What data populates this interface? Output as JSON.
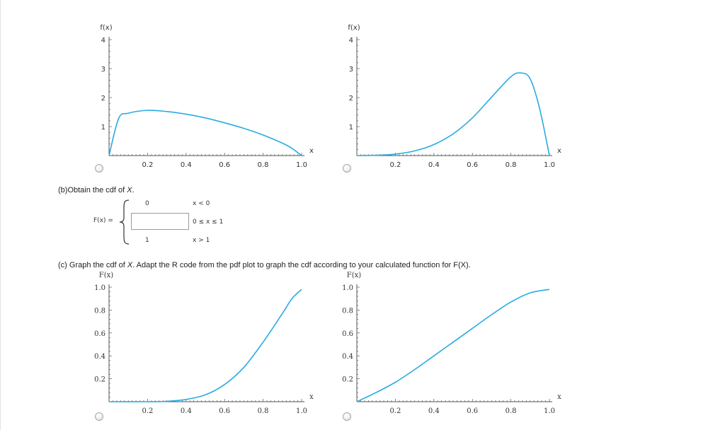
{
  "pdf_question": {
    "plots": [
      {
        "ylabel": "f(x)",
        "xlabel": "x",
        "yticks": [
          "1",
          "2",
          "3",
          "4"
        ],
        "xticks": [
          "0.2",
          "0.4",
          "0.6",
          "0.8",
          "1.0"
        ]
      },
      {
        "ylabel": "f(x)",
        "xlabel": "x",
        "yticks": [
          "1",
          "2",
          "3",
          "4"
        ],
        "xticks": [
          "0.2",
          "0.4",
          "0.6",
          "0.8",
          "1.0"
        ]
      }
    ]
  },
  "part_b": {
    "prompt_text": "(b)Obtain the cdf of ",
    "prompt_var": "X",
    "prompt_end": ".",
    "lhs": "F(x) =",
    "pieces": [
      {
        "value": "0",
        "condition": "x < 0"
      },
      {
        "value": "",
        "condition": "0 ≤ x ≤ 1"
      },
      {
        "value": "1",
        "condition": "x > 1"
      }
    ],
    "input_value": ""
  },
  "part_c": {
    "prompt_text": "(c) Graph the cdf of ",
    "prompt_var": "X",
    "prompt_end": ". Adapt the R code from the pdf plot to graph the cdf according to your calculated function for F(X).",
    "plots": [
      {
        "ylabel": "F(x)",
        "xlabel": "x",
        "yticks": [
          "0.2",
          "0.4",
          "0.6",
          "0.8",
          "1.0"
        ],
        "xticks": [
          "0.2",
          "0.4",
          "0.6",
          "0.8",
          "1.0"
        ]
      },
      {
        "ylabel": "F(x)",
        "xlabel": "x",
        "yticks": [
          "0.2",
          "0.4",
          "0.6",
          "0.8",
          "1.0"
        ],
        "xticks": [
          "0.2",
          "0.4",
          "0.6",
          "0.8",
          "1.0"
        ]
      }
    ]
  },
  "colors": {
    "curve": "#29abe2",
    "axis": "#555555"
  },
  "chart_data": [
    {
      "type": "line",
      "ylabel": "f(x)",
      "xlabel": "x",
      "xlim": [
        0,
        1
      ],
      "ylim": [
        0,
        4
      ],
      "x": [
        0,
        0.05,
        0.1,
        0.2,
        0.3,
        0.4,
        0.5,
        0.6,
        0.7,
        0.8,
        0.9,
        0.95,
        1.0
      ],
      "y": [
        0,
        1.28,
        1.46,
        1.56,
        1.52,
        1.43,
        1.3,
        1.13,
        0.94,
        0.71,
        0.43,
        0.25,
        0
      ]
    },
    {
      "type": "line",
      "ylabel": "f(x)",
      "xlabel": "x",
      "xlim": [
        0,
        1
      ],
      "ylim": [
        0,
        4
      ],
      "x": [
        0,
        0.1,
        0.2,
        0.3,
        0.4,
        0.5,
        0.6,
        0.7,
        0.8,
        0.85,
        0.9,
        0.95,
        1.0
      ],
      "y": [
        0,
        0.01,
        0.05,
        0.16,
        0.38,
        0.75,
        1.3,
        2.02,
        2.72,
        2.85,
        2.65,
        1.6,
        0
      ]
    },
    {
      "type": "line",
      "ylabel": "F(x)",
      "xlabel": "x",
      "xlim": [
        0,
        1
      ],
      "ylim": [
        0,
        1
      ],
      "x": [
        0,
        0.2,
        0.3,
        0.4,
        0.5,
        0.6,
        0.7,
        0.8,
        0.9,
        0.95,
        1.0
      ],
      "y": [
        0,
        0,
        0.004,
        0.02,
        0.06,
        0.15,
        0.3,
        0.52,
        0.77,
        0.9,
        0.98
      ]
    },
    {
      "type": "line",
      "ylabel": "F(x)",
      "xlabel": "x",
      "xlim": [
        0,
        1
      ],
      "ylim": [
        0,
        1
      ],
      "x": [
        0,
        0.1,
        0.2,
        0.3,
        0.4,
        0.5,
        0.6,
        0.7,
        0.8,
        0.9,
        1.0
      ],
      "y": [
        0,
        0.08,
        0.17,
        0.28,
        0.4,
        0.52,
        0.64,
        0.76,
        0.87,
        0.95,
        0.98
      ]
    }
  ]
}
